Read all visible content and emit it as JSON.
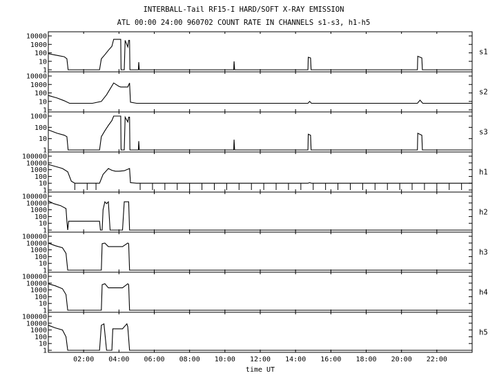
{
  "title_line1": "INTERBALL-Tail RF15-I HARD/SOFT X-RAY EMISSION",
  "title_line2": "ATL 00:00 24:00 960702  COUNT RATE IN CHANNELS s1-s3, h1-h5",
  "chart_data": {
    "type": "line",
    "xlabel": "time UT",
    "x_unit": "hours UT",
    "xlim": [
      0,
      24
    ],
    "x_ticks": [
      "02:00",
      "04:00",
      "06:00",
      "08:00",
      "10:00",
      "12:00",
      "14:00",
      "16:00",
      "18:00",
      "20:00",
      "22:00"
    ],
    "y_scale": "log",
    "grid": false,
    "panels": [
      {
        "name": "s1",
        "y_ticks": [
          "10000",
          "1000",
          "100",
          "10",
          "1"
        ],
        "ylim": [
          1,
          10000
        ],
        "series": [
          [
            0.0,
            80
          ],
          [
            0.5,
            50
          ],
          [
            0.9,
            35
          ],
          [
            1.05,
            20
          ],
          [
            1.12,
            1
          ],
          [
            2.9,
            1
          ],
          [
            3.0,
            20
          ],
          [
            3.2,
            60
          ],
          [
            3.4,
            200
          ],
          [
            3.6,
            600
          ],
          [
            3.7,
            4000
          ],
          [
            4.0,
            4000
          ],
          [
            4.1,
            4000
          ],
          [
            4.12,
            1
          ],
          [
            4.3,
            1
          ],
          [
            4.35,
            3000
          ],
          [
            4.5,
            500
          ],
          [
            4.55,
            3000
          ],
          [
            4.6,
            3000
          ],
          [
            4.62,
            1
          ],
          [
            5.1,
            1
          ],
          [
            5.12,
            8
          ],
          [
            5.15,
            1
          ],
          [
            10.5,
            1
          ],
          [
            10.52,
            10
          ],
          [
            10.55,
            1
          ],
          [
            14.7,
            1
          ],
          [
            14.72,
            30
          ],
          [
            14.85,
            25
          ],
          [
            14.88,
            1
          ],
          [
            20.9,
            1
          ],
          [
            20.92,
            40
          ],
          [
            21.15,
            25
          ],
          [
            21.18,
            1
          ],
          [
            24.0,
            1
          ]
        ]
      },
      {
        "name": "s2",
        "y_ticks": [
          "10000",
          "1000",
          "100",
          "10",
          "1"
        ],
        "ylim": [
          1,
          10000
        ],
        "series": [
          [
            0.0,
            50
          ],
          [
            0.5,
            25
          ],
          [
            0.9,
            12
          ],
          [
            1.2,
            6
          ],
          [
            2.5,
            6
          ],
          [
            3.0,
            10
          ],
          [
            3.3,
            60
          ],
          [
            3.5,
            300
          ],
          [
            3.7,
            1500
          ],
          [
            4.0,
            600
          ],
          [
            4.1,
            500
          ],
          [
            4.5,
            500
          ],
          [
            4.6,
            1500
          ],
          [
            4.65,
            8
          ],
          [
            5.0,
            6
          ],
          [
            14.7,
            6
          ],
          [
            14.8,
            10
          ],
          [
            14.9,
            6
          ],
          [
            20.9,
            6
          ],
          [
            21.05,
            14
          ],
          [
            21.2,
            6
          ],
          [
            24.0,
            6
          ]
        ]
      },
      {
        "name": "s3",
        "y_ticks": [
          "1000",
          "100",
          "10",
          "1"
        ],
        "ylim": [
          1,
          1000
        ],
        "series": [
          [
            0.0,
            60
          ],
          [
            0.5,
            30
          ],
          [
            0.9,
            20
          ],
          [
            1.05,
            15
          ],
          [
            1.12,
            1
          ],
          [
            2.9,
            1
          ],
          [
            3.0,
            15
          ],
          [
            3.2,
            50
          ],
          [
            3.4,
            150
          ],
          [
            3.6,
            400
          ],
          [
            3.7,
            1000
          ],
          [
            4.1,
            1000
          ],
          [
            4.12,
            1
          ],
          [
            4.3,
            1
          ],
          [
            4.35,
            800
          ],
          [
            4.5,
            300
          ],
          [
            4.55,
            800
          ],
          [
            4.6,
            800
          ],
          [
            4.62,
            1
          ],
          [
            5.1,
            1
          ],
          [
            5.12,
            6
          ],
          [
            5.15,
            1
          ],
          [
            10.5,
            1
          ],
          [
            10.52,
            8
          ],
          [
            10.55,
            1
          ],
          [
            14.7,
            1
          ],
          [
            14.72,
            25
          ],
          [
            14.85,
            20
          ],
          [
            14.88,
            1
          ],
          [
            20.9,
            1
          ],
          [
            20.92,
            30
          ],
          [
            21.15,
            20
          ],
          [
            21.18,
            1
          ],
          [
            24.0,
            1
          ]
        ]
      },
      {
        "name": "h1",
        "y_ticks": [
          "100000",
          "10000",
          "1000",
          "100",
          "10",
          "1"
        ],
        "ylim": [
          1,
          100000
        ],
        "series": [
          [
            0.0,
            6000
          ],
          [
            0.4,
            3000
          ],
          [
            0.8,
            1500
          ],
          [
            1.1,
            500
          ],
          [
            1.3,
            20
          ],
          [
            1.5,
            10
          ],
          [
            2.9,
            10
          ],
          [
            3.1,
            200
          ],
          [
            3.4,
            1500
          ],
          [
            3.6,
            800
          ],
          [
            3.8,
            600
          ],
          [
            4.0,
            600
          ],
          [
            4.3,
            700
          ],
          [
            4.6,
            1500
          ],
          [
            4.65,
            12
          ],
          [
            5.0,
            10
          ],
          [
            14.7,
            10
          ],
          [
            14.8,
            12
          ],
          [
            14.9,
            10
          ],
          [
            24.0,
            10
          ]
        ],
        "dropout_times": [
          1.5,
          2.2,
          2.7,
          5.2,
          5.9,
          6.6,
          7.3,
          8.0,
          8.7,
          9.4,
          10.1,
          10.8,
          11.5,
          12.2,
          12.9,
          13.6,
          14.3,
          15.0,
          15.7,
          16.4,
          17.1,
          17.8,
          18.5,
          19.2,
          19.9,
          20.6,
          21.3,
          22.0,
          22.7,
          23.4
        ]
      },
      {
        "name": "h2",
        "y_ticks": [
          "100000",
          "10000",
          "1000",
          "100",
          "10",
          "1"
        ],
        "ylim": [
          1,
          100000
        ],
        "series": [
          [
            0.0,
            20000
          ],
          [
            0.3,
            8000
          ],
          [
            0.7,
            4000
          ],
          [
            1.0,
            1500
          ],
          [
            1.05,
            20
          ],
          [
            1.1,
            1
          ],
          [
            1.15,
            20
          ],
          [
            2.9,
            20
          ],
          [
            2.95,
            1
          ],
          [
            3.05,
            1
          ],
          [
            3.1,
            1000
          ],
          [
            3.2,
            15000
          ],
          [
            3.3,
            8000
          ],
          [
            3.4,
            15000
          ],
          [
            3.5,
            1
          ],
          [
            4.2,
            1
          ],
          [
            4.3,
            15000
          ],
          [
            4.55,
            15000
          ],
          [
            4.6,
            1
          ],
          [
            24.0,
            1
          ]
        ]
      },
      {
        "name": "h3",
        "y_ticks": [
          "100000",
          "10000",
          "1000",
          "100",
          "10",
          "1"
        ],
        "ylim": [
          1,
          100000
        ],
        "series": [
          [
            0.0,
            10000
          ],
          [
            0.4,
            4000
          ],
          [
            0.8,
            2000
          ],
          [
            1.0,
            300
          ],
          [
            1.1,
            1
          ],
          [
            3.0,
            1
          ],
          [
            3.05,
            8000
          ],
          [
            3.2,
            10000
          ],
          [
            3.4,
            3000
          ],
          [
            4.2,
            3000
          ],
          [
            4.5,
            10000
          ],
          [
            4.55,
            8000
          ],
          [
            4.6,
            1
          ],
          [
            24.0,
            1
          ]
        ]
      },
      {
        "name": "h4",
        "y_ticks": [
          "100000",
          "10000",
          "1000",
          "100",
          "10",
          "1"
        ],
        "ylim": [
          1,
          100000
        ],
        "series": [
          [
            0.0,
            8000
          ],
          [
            0.4,
            4000
          ],
          [
            0.8,
            1500
          ],
          [
            1.0,
            200
          ],
          [
            1.1,
            1
          ],
          [
            3.0,
            1
          ],
          [
            3.05,
            6000
          ],
          [
            3.2,
            8000
          ],
          [
            3.4,
            2000
          ],
          [
            4.2,
            2000
          ],
          [
            4.5,
            8000
          ],
          [
            4.55,
            6000
          ],
          [
            4.6,
            1
          ],
          [
            24.0,
            1
          ]
        ]
      },
      {
        "name": "h5",
        "y_ticks": [
          "100000",
          "10000",
          "1000",
          "100",
          "10",
          "1"
        ],
        "ylim": [
          1,
          100000
        ],
        "series": [
          [
            0.0,
            5000
          ],
          [
            0.4,
            2000
          ],
          [
            0.8,
            1000
          ],
          [
            1.0,
            100
          ],
          [
            1.1,
            1
          ],
          [
            2.9,
            1
          ],
          [
            3.0,
            5000
          ],
          [
            3.15,
            8000
          ],
          [
            3.3,
            1
          ],
          [
            3.6,
            1
          ],
          [
            3.65,
            1500
          ],
          [
            4.2,
            1500
          ],
          [
            4.45,
            8000
          ],
          [
            4.5,
            3000
          ],
          [
            4.6,
            1
          ],
          [
            24.0,
            1
          ]
        ]
      }
    ]
  }
}
